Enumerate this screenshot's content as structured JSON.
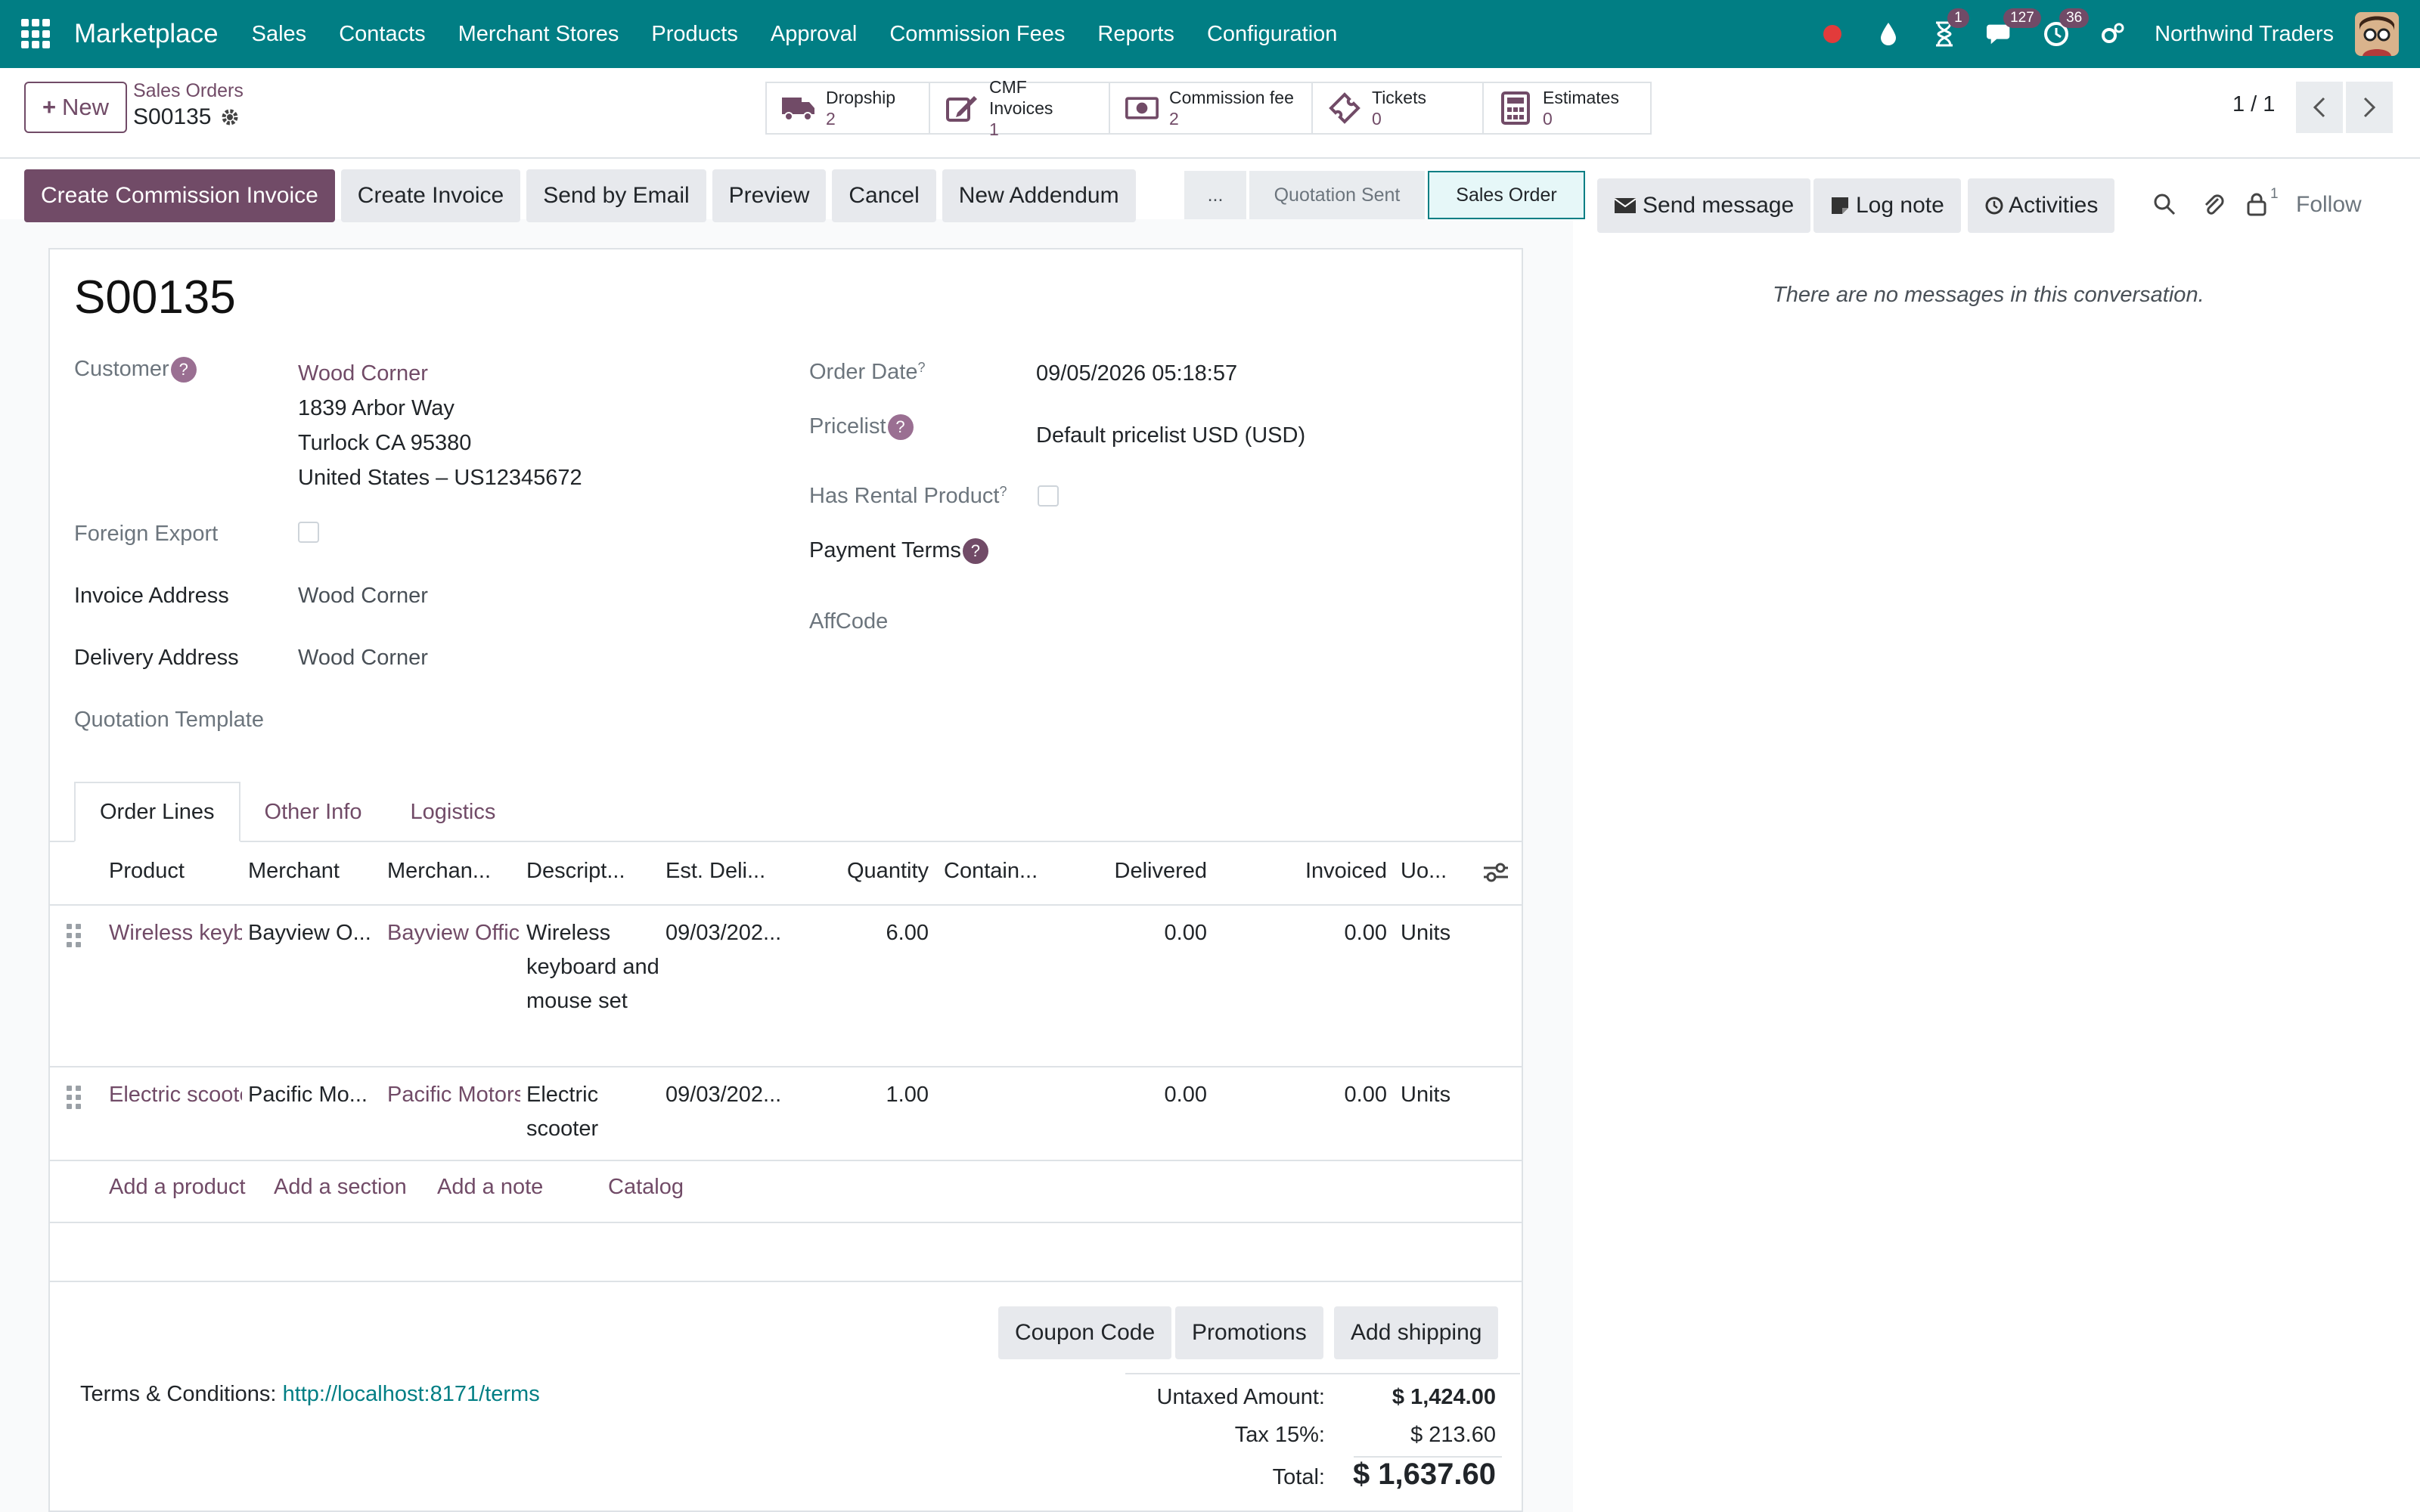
{
  "navbar": {
    "brand": "Marketplace",
    "menu": [
      "Sales",
      "Contacts",
      "Merchant Stores",
      "Products",
      "Approval",
      "Commission Fees",
      "Reports",
      "Configuration"
    ],
    "activities_badge": "1",
    "messages_badge": "127",
    "clock_badge": "36",
    "company": "Northwind Traders"
  },
  "control": {
    "new_label": "New",
    "breadcrumb_parent": "Sales Orders",
    "breadcrumb_current": "S00135",
    "stat_buttons": [
      {
        "label": "Dropship",
        "value": "2",
        "icon": "truck-icon"
      },
      {
        "label": "CMF Invoices",
        "value": "1",
        "icon": "edit-icon"
      },
      {
        "label": "Commission fee",
        "value": "2",
        "icon": "money-icon"
      },
      {
        "label": "Tickets",
        "value": "0",
        "icon": "ticket-icon"
      },
      {
        "label": "Estimates",
        "value": "0",
        "icon": "calculator-icon"
      }
    ],
    "pager": "1 / 1"
  },
  "actions": [
    "Create Commission Invoice",
    "Create Invoice",
    "Send by Email",
    "Preview",
    "Cancel",
    "New Addendum"
  ],
  "status": {
    "more": "...",
    "steps": [
      "Quotation Sent",
      "Sales Order"
    ],
    "active": "Sales Order"
  },
  "form": {
    "title": "S00135",
    "customer_label": "Customer",
    "customer_name": "Wood Corner",
    "customer_address": [
      "1839 Arbor Way",
      "Turlock CA 95380",
      "United States – US12345672"
    ],
    "foreign_export_label": "Foreign Export",
    "invoice_address_label": "Invoice Address",
    "invoice_address": "Wood Corner",
    "delivery_address_label": "Delivery Address",
    "delivery_address": "Wood Corner",
    "quotation_template_label": "Quotation Template",
    "order_date_label": "Order Date",
    "order_date": "09/05/2026 05:18:57",
    "pricelist_label": "Pricelist",
    "pricelist": "Default pricelist USD (USD)",
    "rental_label": "Has Rental Product",
    "payment_terms_label": "Payment Terms",
    "affcode_label": "AffCode"
  },
  "tabs": [
    "Order Lines",
    "Other Info",
    "Logistics"
  ],
  "table": {
    "headers": [
      "Product",
      "Merchant",
      "Merchan...",
      "Descript...",
      "Est. Deli...",
      "Quantity",
      "Contain...",
      "Delivered",
      "Invoiced",
      "Uo..."
    ],
    "rows": [
      {
        "product": "Wireless keyboard",
        "merchant": "Bayview O...",
        "merchant_store": "Bayview Office",
        "description": "Wireless keyboard and mouse set",
        "est_delivery": "09/03/202...",
        "quantity": "6.00",
        "delivered": "0.00",
        "invoiced": "0.00",
        "uom": "Units"
      },
      {
        "product": "Electric scooter",
        "merchant": "Pacific Mo...",
        "merchant_store": "Pacific Motors",
        "description": "Electric scooter",
        "est_delivery": "09/03/202...",
        "quantity": "1.00",
        "delivered": "0.00",
        "invoiced": "0.00",
        "uom": "Units"
      }
    ],
    "add_links": [
      "Add a product",
      "Add a section",
      "Add a note",
      "Catalog"
    ]
  },
  "bottom": {
    "buttons": [
      "Coupon Code",
      "Promotions",
      "Add shipping"
    ],
    "terms_label": "Terms & Conditions:",
    "terms_link": "http://localhost:8171/terms",
    "untaxed_label": "Untaxed Amount:",
    "untaxed_value": "$ 1,424.00",
    "tax_label": "Tax 15%:",
    "tax_value": "$ 213.60",
    "total_label": "Total:",
    "total_value": "$ 1,637.60"
  },
  "chatter": {
    "send_message": "Send message",
    "log_note": "Log note",
    "activities": "Activities",
    "followers_count": "1",
    "follow": "Follow",
    "empty": "There are no messages in this conversation."
  },
  "colors": {
    "navbar": "#017e84",
    "primary": "#714b67"
  }
}
